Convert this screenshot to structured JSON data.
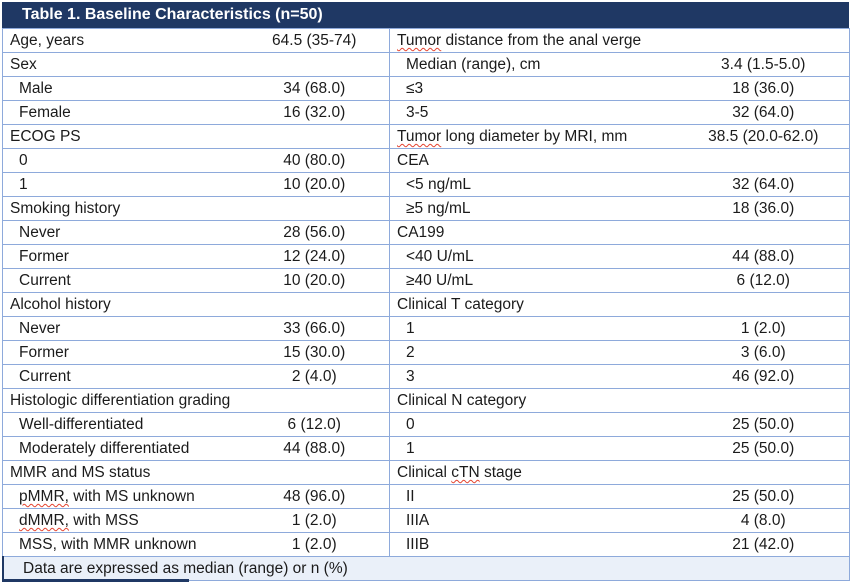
{
  "table": {
    "title": "Table 1. Baseline Characteristics (n=50)",
    "footnote": "Data are expressed as median (range) or n (%)",
    "colors": {
      "header_bg": "#1F3864",
      "row_border": "#8EAADB",
      "footer_bg": "#EAF0F9",
      "spellcheck_red": "#E4432F",
      "text": "#1b1b1b",
      "header_text": "#ffffff"
    },
    "left_rows": [
      {
        "label": "Age, years",
        "value": "64.5 (35-74)",
        "indent": false,
        "squiggle": null
      },
      {
        "label": "Sex",
        "value": "",
        "indent": false,
        "squiggle": null
      },
      {
        "label": "Male",
        "value": "34 (68.0)",
        "indent": true,
        "squiggle": null
      },
      {
        "label": "Female",
        "value": "16 (32.0)",
        "indent": true,
        "squiggle": null
      },
      {
        "label": "ECOG PS",
        "value": "",
        "indent": false,
        "squiggle": null
      },
      {
        "label": "0",
        "value": "40 (80.0)",
        "indent": true,
        "squiggle": null
      },
      {
        "label": "1",
        "value": "10 (20.0)",
        "indent": true,
        "squiggle": null
      },
      {
        "label": "Smoking history",
        "value": "",
        "indent": false,
        "squiggle": null
      },
      {
        "label": "Never",
        "value": "28 (56.0)",
        "indent": true,
        "squiggle": null
      },
      {
        "label": "Former",
        "value": "12 (24.0)",
        "indent": true,
        "squiggle": null
      },
      {
        "label": "Current",
        "value": "10 (20.0)",
        "indent": true,
        "squiggle": null
      },
      {
        "label": "Alcohol history",
        "value": "",
        "indent": false,
        "squiggle": null
      },
      {
        "label": "Never",
        "value": "33 (66.0)",
        "indent": true,
        "squiggle": null
      },
      {
        "label": "Former",
        "value": "15 (30.0)",
        "indent": true,
        "squiggle": null
      },
      {
        "label": "Current",
        "value": "2 (4.0)",
        "indent": true,
        "squiggle": null
      },
      {
        "label": "Histologic differentiation grading",
        "value": "",
        "indent": false,
        "squiggle": null
      },
      {
        "label": "Well-differentiated",
        "value": "6 (12.0)",
        "indent": true,
        "squiggle": null
      },
      {
        "label": "Moderately differentiated",
        "value": "44 (88.0)",
        "indent": true,
        "squiggle": null
      },
      {
        "label": "MMR and MS status",
        "value": "",
        "indent": false,
        "squiggle": null
      },
      {
        "label": "pMMR, with MS unknown",
        "value": "48 (96.0)",
        "indent": true,
        "squiggle": "pMMR,"
      },
      {
        "label": "dMMR, with MSS",
        "value": "1 (2.0)",
        "indent": true,
        "squiggle": "dMMR,"
      },
      {
        "label": "MSS, with MMR unknown",
        "value": "1 (2.0)",
        "indent": true,
        "squiggle": null
      }
    ],
    "right_rows": [
      {
        "label": "Tumor distance from the anal verge",
        "value": "",
        "indent": false,
        "squiggle": "Tumor"
      },
      {
        "label": "Median (range), cm",
        "value": "3.4 (1.5-5.0)",
        "indent": true,
        "squiggle": null
      },
      {
        "label": "≤3",
        "value": "18 (36.0)",
        "indent": true,
        "squiggle": null
      },
      {
        "label": "3-5",
        "value": "32 (64.0)",
        "indent": true,
        "squiggle": null
      },
      {
        "label": "Tumor long diameter by MRI, mm",
        "value": "38.5 (20.0-62.0)",
        "indent": false,
        "squiggle": "Tumor"
      },
      {
        "label": "CEA",
        "value": "",
        "indent": false,
        "squiggle": null
      },
      {
        "label": "<5 ng/mL",
        "value": "32 (64.0)",
        "indent": true,
        "squiggle": null
      },
      {
        "label": "≥5 ng/mL",
        "value": "18 (36.0)",
        "indent": true,
        "squiggle": null
      },
      {
        "label": "CA199",
        "value": "",
        "indent": false,
        "squiggle": null
      },
      {
        "label": "<40 U/mL",
        "value": "44 (88.0)",
        "indent": true,
        "squiggle": null
      },
      {
        "label": "≥40 U/mL",
        "value": "6 (12.0)",
        "indent": true,
        "squiggle": null
      },
      {
        "label": "Clinical T category",
        "value": "",
        "indent": false,
        "squiggle": null
      },
      {
        "label": "1",
        "value": "1 (2.0)",
        "indent": true,
        "squiggle": null
      },
      {
        "label": "2",
        "value": "3 (6.0)",
        "indent": true,
        "squiggle": null
      },
      {
        "label": "3",
        "value": "46 (92.0)",
        "indent": true,
        "squiggle": null
      },
      {
        "label": "Clinical N category",
        "value": "",
        "indent": false,
        "squiggle": null
      },
      {
        "label": "0",
        "value": "25 (50.0)",
        "indent": true,
        "squiggle": null
      },
      {
        "label": "1",
        "value": "25 (50.0)",
        "indent": true,
        "squiggle": null
      },
      {
        "label": "Clinical cTN stage",
        "value": "",
        "indent": false,
        "squiggle": "cTN"
      },
      {
        "label": "II",
        "value": "25 (50.0)",
        "indent": true,
        "squiggle": null
      },
      {
        "label": "IIIA",
        "value": "4 (8.0)",
        "indent": true,
        "squiggle": null
      },
      {
        "label": "IIIB",
        "value": "21 (42.0)",
        "indent": true,
        "squiggle": null
      }
    ]
  }
}
